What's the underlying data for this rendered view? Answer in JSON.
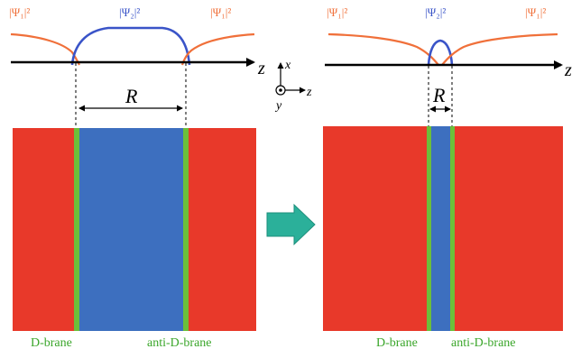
{
  "colors": {
    "red": "#e8392a",
    "blue": "#3d6fbf",
    "green": "#6cbf3a",
    "orange_curve": "#f0703a",
    "blue_curve": "#3a54c8",
    "arrow_teal": "#2bb09a",
    "axis": "#000000"
  },
  "left_panel": {
    "psi1_left": "|Ψ₁|²",
    "psi2": "|Ψ₂|²",
    "psi1_right": "|Ψ₁|²",
    "axis_label": "z",
    "separation_label": "R",
    "dbrane_label": "D-brane",
    "anti_dbrane_label": "anti-D-brane"
  },
  "axes_indicator": {
    "x_label": "x",
    "z_label": "z",
    "y_label": "y"
  },
  "right_panel": {
    "psi1_left": "|Ψ₁|²",
    "psi2": "|Ψ₂|²",
    "psi1_right": "|Ψ₁|²",
    "axis_label": "z",
    "separation_label": "R",
    "dbrane_label": "D-brane",
    "anti_dbrane_label": "anti-D-brane"
  },
  "transition_arrow": {
    "icon": "right-arrow-icon"
  }
}
